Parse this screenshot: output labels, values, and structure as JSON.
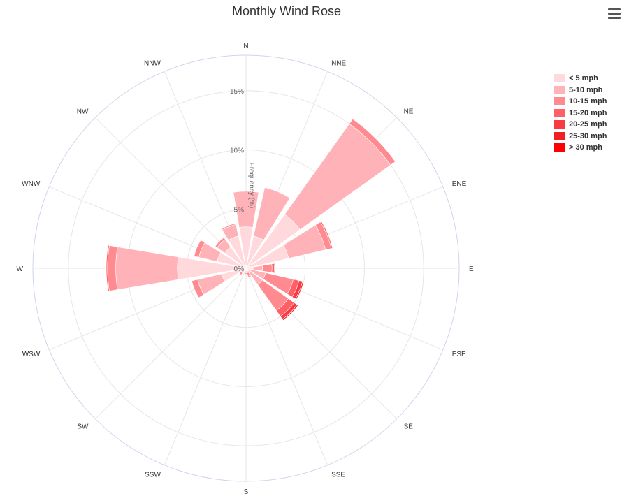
{
  "title": "Monthly Wind Rose",
  "menu_icon": "hamburger-menu-icon",
  "chart_data": {
    "type": "polar-stacked-bar",
    "title": "Monthly Wind Rose",
    "radial_axis_label": "Frequency (%)",
    "radial_range": [
      0,
      18
    ],
    "radial_ticks": [
      0,
      5,
      10,
      15
    ],
    "radial_tick_labels": [
      "0%",
      "5%",
      "10%",
      "15%"
    ],
    "grid": true,
    "legend_placement": "top-right",
    "directions": [
      "N",
      "NNE",
      "NE",
      "ENE",
      "E",
      "ESE",
      "SE",
      "SSE",
      "S",
      "SSW",
      "SW",
      "WSW",
      "W",
      "WNW",
      "NW",
      "NNW"
    ],
    "series": [
      {
        "name": "< 5 mph",
        "color": "#ffd9dc",
        "values": [
          3.5,
          2.8,
          5.6,
          3.7,
          0.6,
          0.4,
          0.3,
          0.1,
          0.2,
          0.1,
          0.1,
          2.1,
          5.8,
          2.5,
          2.2,
          2.8
        ]
      },
      {
        "name": "5-10 mph",
        "color": "#ffb3b8",
        "values": [
          3.0,
          4.2,
          9.4,
          3.2,
          0.8,
          1.3,
          1.4,
          0.3,
          0.2,
          0.1,
          0.4,
          2.1,
          5.2,
          1.6,
          0.8,
          1.0
        ]
      },
      {
        "name": "10-15 mph",
        "color": "#ff8a90",
        "values": [
          0.0,
          0.0,
          0.5,
          0.5,
          0.8,
          2.4,
          2.7,
          0.3,
          0.1,
          0.0,
          0.2,
          0.5,
          0.7,
          0.4,
          0.2,
          0.1
        ]
      },
      {
        "name": "15-20 mph",
        "color": "#ff6068",
        "values": [
          0.0,
          0.0,
          0.0,
          0.1,
          0.2,
          0.5,
          0.6,
          0.1,
          0.0,
          0.0,
          0.0,
          0.0,
          0.1,
          0.0,
          0.0,
          0.0
        ]
      },
      {
        "name": "20-25 mph",
        "color": "#f83a42",
        "values": [
          0.0,
          0.0,
          0.0,
          0.0,
          0.1,
          0.3,
          0.3,
          0.0,
          0.0,
          0.0,
          0.0,
          0.0,
          0.0,
          0.0,
          0.0,
          0.0
        ]
      },
      {
        "name": "25-30 mph",
        "color": "#f21e26",
        "values": [
          0.0,
          0.0,
          0.0,
          0.0,
          0.0,
          0.1,
          0.1,
          0.0,
          0.0,
          0.0,
          0.0,
          0.0,
          0.0,
          0.0,
          0.0,
          0.0
        ]
      },
      {
        "name": "> 30 mph",
        "color": "#ff0000",
        "values": [
          0.0,
          0.0,
          0.0,
          0.0,
          0.0,
          0.0,
          0.0,
          0.0,
          0.0,
          0.0,
          0.0,
          0.0,
          0.0,
          0.0,
          0.0,
          0.0
        ]
      }
    ]
  }
}
